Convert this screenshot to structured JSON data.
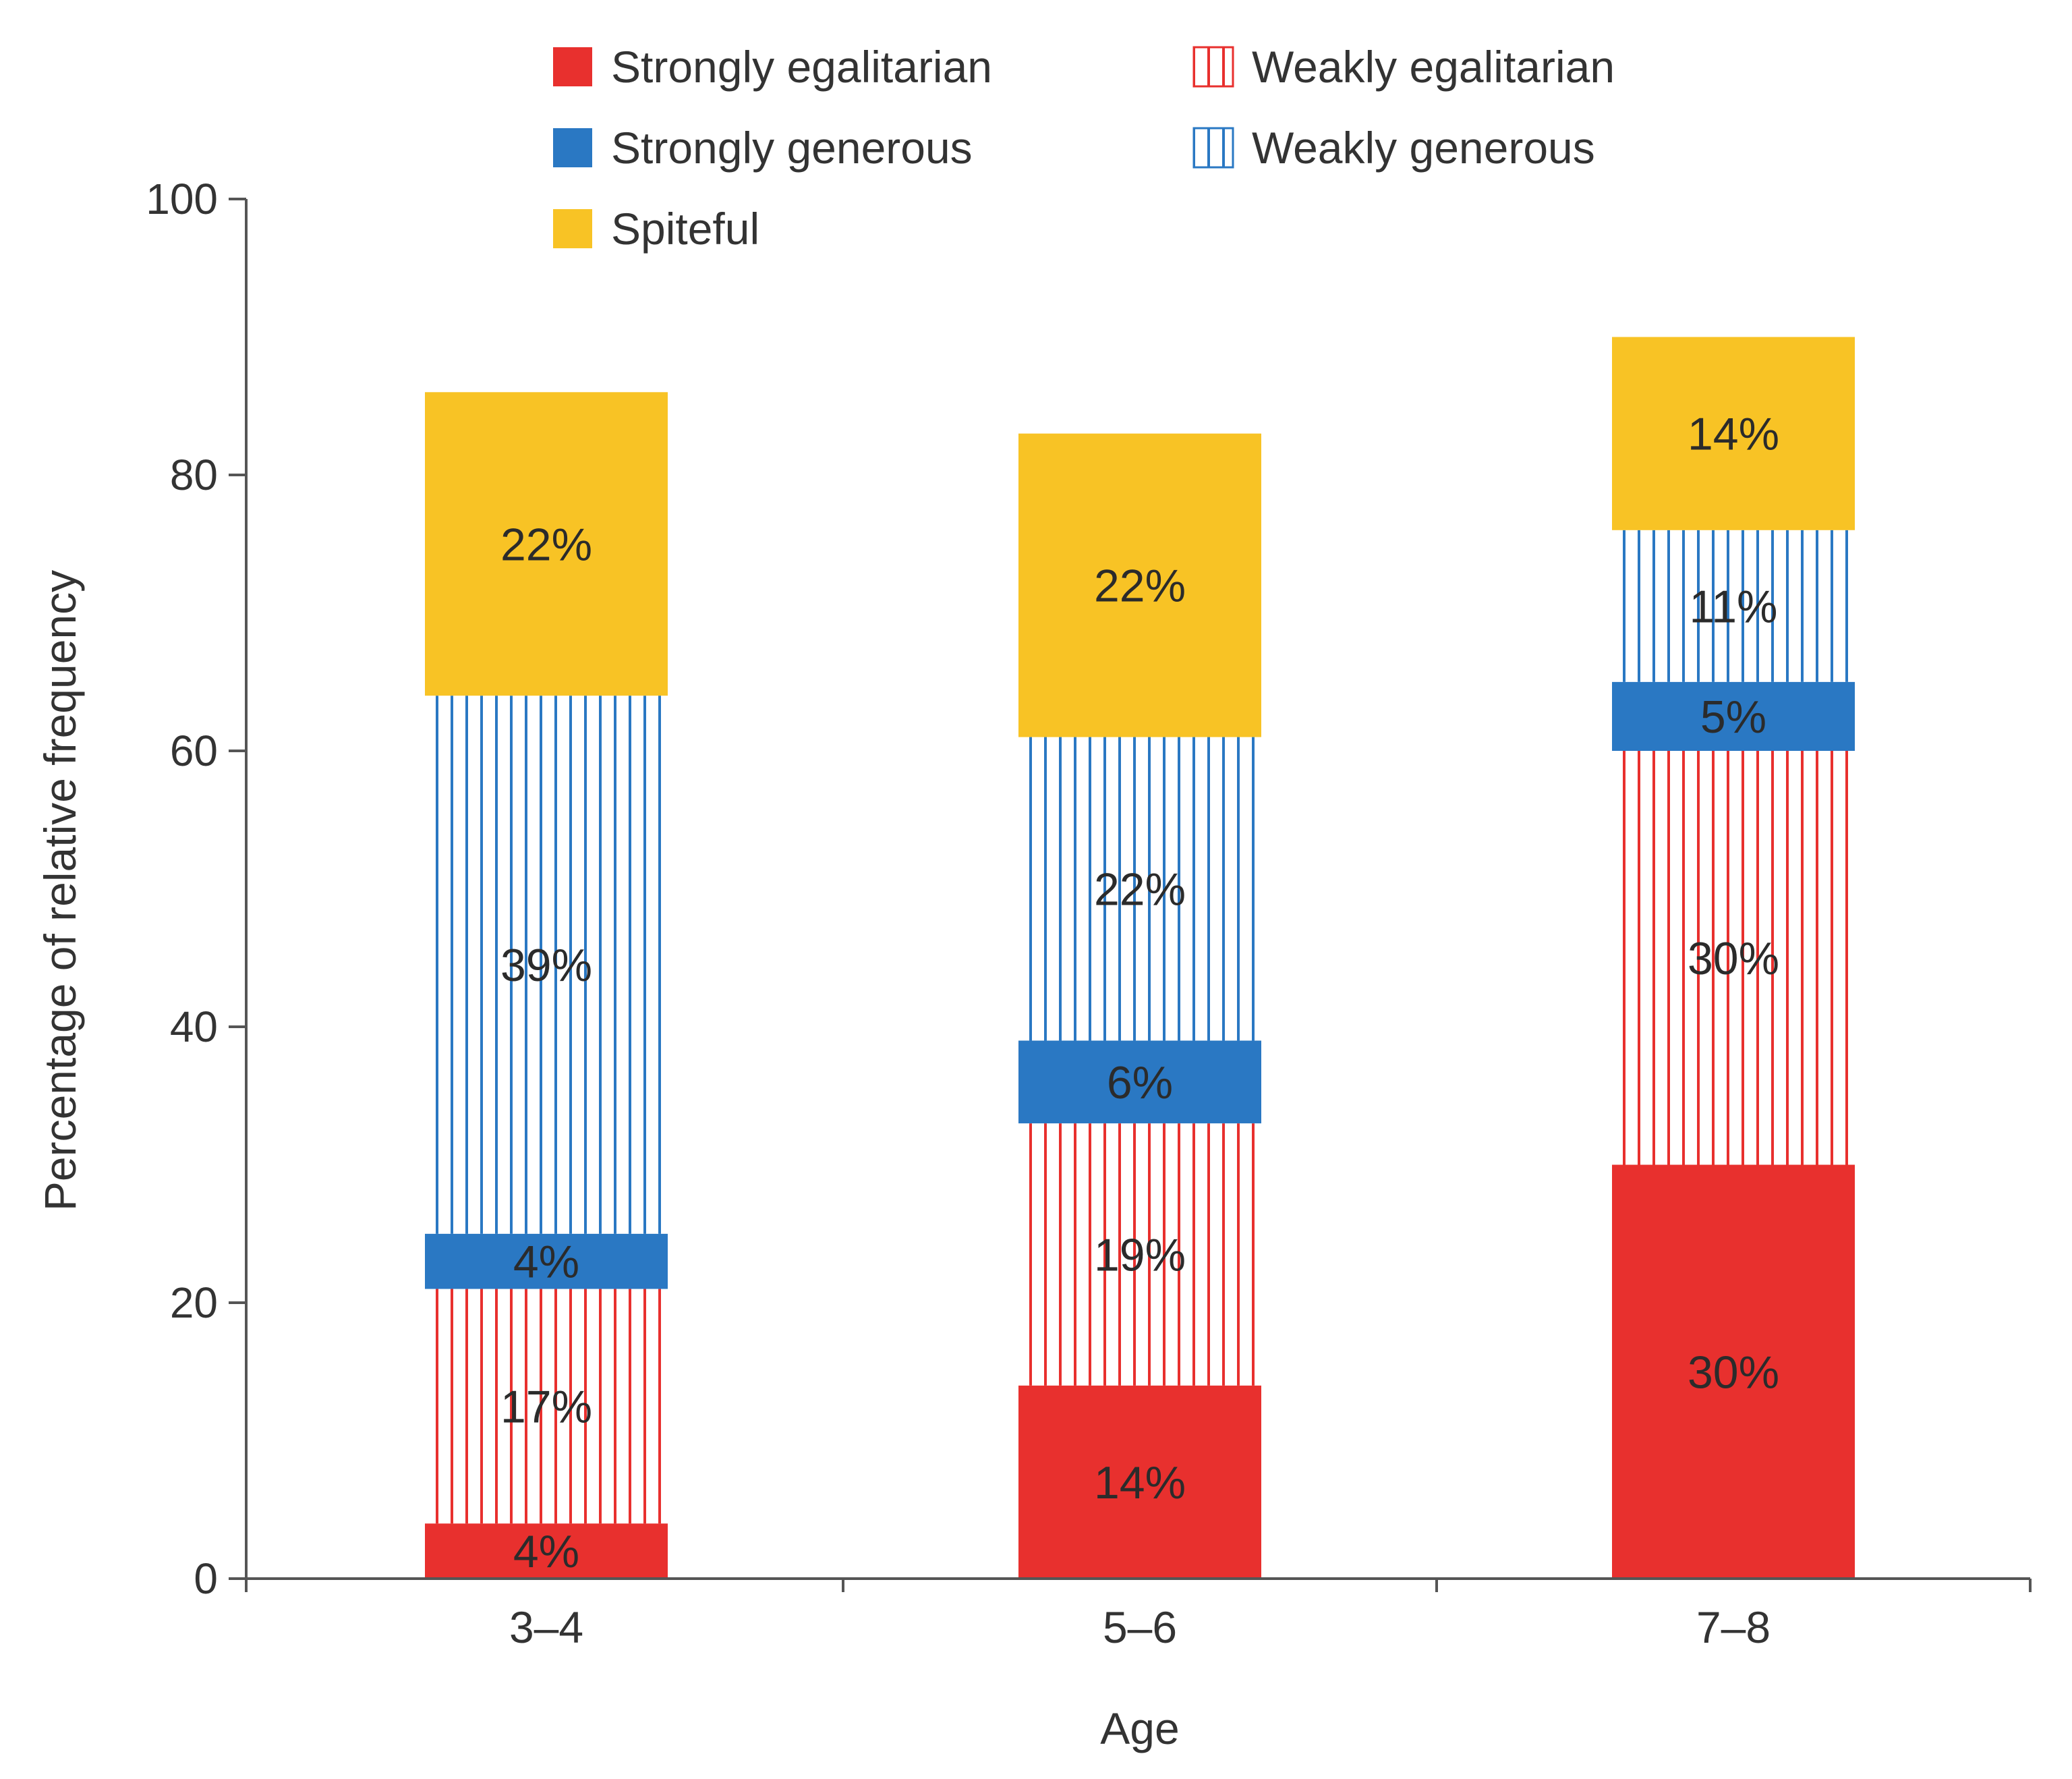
{
  "chart_data": {
    "type": "bar",
    "stacked": true,
    "title": "",
    "xlabel": "Age",
    "ylabel": "Percentage of relative frequency",
    "ylim": [
      0,
      100
    ],
    "yticks": [
      0,
      20,
      40,
      60,
      80,
      100
    ],
    "categories": [
      "3–4",
      "5–6",
      "7–8"
    ],
    "legend_position": "top",
    "series": [
      {
        "name": "Strongly egalitarian",
        "values": [
          4,
          14,
          30
        ],
        "labels": [
          "4%",
          "14%",
          "30%"
        ],
        "color": "#e8302e",
        "pattern": "solid"
      },
      {
        "name": "Weakly egalitarian",
        "values": [
          17,
          19,
          30
        ],
        "labels": [
          "17%",
          "19%",
          "30%"
        ],
        "color": "#e8302e",
        "pattern": "striped"
      },
      {
        "name": "Strongly generous",
        "values": [
          4,
          6,
          5
        ],
        "labels": [
          "4%",
          "6%",
          "5%"
        ],
        "color": "#2a78c3",
        "pattern": "solid"
      },
      {
        "name": "Weakly generous",
        "values": [
          39,
          22,
          11
        ],
        "labels": [
          "39%",
          "22%",
          "11%"
        ],
        "color": "#2a78c3",
        "pattern": "striped"
      },
      {
        "name": "Spiteful",
        "values": [
          22,
          22,
          14
        ],
        "labels": [
          "22%",
          "22%",
          "14%"
        ],
        "color": "#f8c325",
        "pattern": "solid"
      }
    ]
  }
}
